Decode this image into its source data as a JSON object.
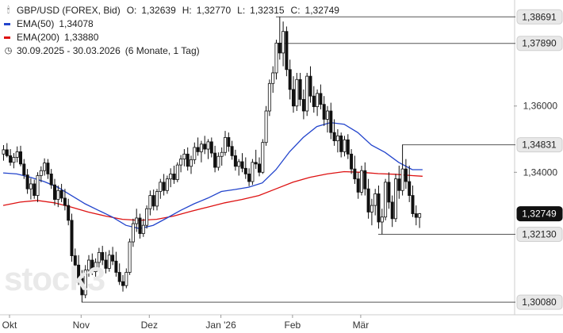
{
  "header": {
    "instrument": "GBP/USD (FOREX, Bid)",
    "ohlc": [
      {
        "label": "O:",
        "value": "1,32639"
      },
      {
        "label": "H:",
        "value": "1,32770"
      },
      {
        "label": "L:",
        "value": "1,32315"
      },
      {
        "label": "C:",
        "value": "1,32749"
      }
    ],
    "ema50": {
      "label": "EMA(50)",
      "value": "1,34078",
      "color": "#2244cc"
    },
    "ema200": {
      "label": "EMA(200)",
      "value": "1,33880",
      "color": "#dd1111"
    },
    "range": "30.09.2025 - 30.03.2026",
    "range_detail": "(6 Monate, 1 Tag)"
  },
  "watermark": "stock3",
  "chart_data": {
    "type": "candlestick",
    "x_ticks": [
      "Okt",
      "Nov",
      "Dez",
      "Jan '26",
      "Feb",
      "Mär"
    ],
    "y_ticks": [
      "1,36000",
      "1,34000"
    ],
    "y_range": [
      1.297,
      1.392
    ],
    "price_labels": [
      {
        "value": 1.38691,
        "text": "1,38691",
        "line": true,
        "start_index": 80,
        "fill": "#e8e8e8"
      },
      {
        "value": 1.3789,
        "text": "1,37890",
        "line": true,
        "start_index": 80,
        "fill": "#e8e8e8"
      },
      {
        "value": 1.34831,
        "text": "1,34831",
        "line": true,
        "start_index": 117,
        "fill": "#e8e8e8"
      },
      {
        "value": 1.32749,
        "text": "1,32749",
        "line": false,
        "fill": "#111111",
        "text_color": "#ffffff"
      },
      {
        "value": 1.3213,
        "text": "1,32130",
        "line": true,
        "start_index": 110,
        "fill": "#e8e8e8"
      },
      {
        "value": 1.3008,
        "text": "1,30080",
        "line": true,
        "start_index": 23,
        "fill": "#e8e8e8"
      }
    ],
    "ohlc": [
      [
        1.3455,
        1.3482,
        1.3435,
        1.3468
      ],
      [
        1.3468,
        1.3488,
        1.3445,
        1.345
      ],
      [
        1.345,
        1.347,
        1.342,
        1.343
      ],
      [
        1.343,
        1.3458,
        1.3412,
        1.3445
      ],
      [
        1.3445,
        1.3478,
        1.343,
        1.3462
      ],
      [
        1.3462,
        1.348,
        1.3418,
        1.3425
      ],
      [
        1.3425,
        1.344,
        1.338,
        1.3392
      ],
      [
        1.3392,
        1.341,
        1.3335,
        1.335
      ],
      [
        1.335,
        1.3382,
        1.3318,
        1.3365
      ],
      [
        1.3365,
        1.3378,
        1.332,
        1.333
      ],
      [
        1.333,
        1.34,
        1.331,
        1.339
      ],
      [
        1.339,
        1.3418,
        1.337,
        1.3405
      ],
      [
        1.3405,
        1.3442,
        1.339,
        1.3428
      ],
      [
        1.3428,
        1.344,
        1.338,
        1.3395
      ],
      [
        1.3395,
        1.341,
        1.335,
        1.3362
      ],
      [
        1.3362,
        1.338,
        1.33,
        1.3318
      ],
      [
        1.3318,
        1.336,
        1.3295,
        1.3345
      ],
      [
        1.3345,
        1.3365,
        1.331,
        1.3322
      ],
      [
        1.3322,
        1.335,
        1.3285,
        1.33
      ],
      [
        1.33,
        1.332,
        1.324,
        1.3255
      ],
      [
        1.3255,
        1.3275,
        1.313,
        1.3148
      ],
      [
        1.3148,
        1.317,
        1.31,
        1.312
      ],
      [
        1.312,
        1.315,
        1.306,
        1.308
      ],
      [
        1.308,
        1.3105,
        1.3008,
        1.303
      ],
      [
        1.303,
        1.312,
        1.302,
        1.3105
      ],
      [
        1.3105,
        1.315,
        1.3085,
        1.3135
      ],
      [
        1.3135,
        1.3155,
        1.309,
        1.31
      ],
      [
        1.31,
        1.314,
        1.3075,
        1.3128
      ],
      [
        1.3128,
        1.3172,
        1.311,
        1.3158
      ],
      [
        1.3158,
        1.3178,
        1.312,
        1.3135
      ],
      [
        1.3135,
        1.316,
        1.3095,
        1.311
      ],
      [
        1.311,
        1.3165,
        1.31,
        1.315
      ],
      [
        1.315,
        1.3175,
        1.312,
        1.3132
      ],
      [
        1.3132,
        1.316,
        1.3085,
        1.3098
      ],
      [
        1.3098,
        1.3125,
        1.306,
        1.307
      ],
      [
        1.307,
        1.309,
        1.304,
        1.3058
      ],
      [
        1.3058,
        1.311,
        1.305,
        1.3098
      ],
      [
        1.3098,
        1.32,
        1.309,
        1.319
      ],
      [
        1.319,
        1.326,
        1.3175,
        1.3245
      ],
      [
        1.3245,
        1.329,
        1.322,
        1.3262
      ],
      [
        1.3262,
        1.3275,
        1.32,
        1.3215
      ],
      [
        1.3215,
        1.326,
        1.3205,
        1.324
      ],
      [
        1.324,
        1.33,
        1.323,
        1.329
      ],
      [
        1.329,
        1.3345,
        1.327,
        1.333
      ],
      [
        1.333,
        1.3348,
        1.3285,
        1.3298
      ],
      [
        1.3298,
        1.335,
        1.3285,
        1.3342
      ],
      [
        1.3342,
        1.338,
        1.332,
        1.337
      ],
      [
        1.337,
        1.3395,
        1.333,
        1.3345
      ],
      [
        1.3345,
        1.339,
        1.3335,
        1.338
      ],
      [
        1.338,
        1.3412,
        1.3355,
        1.3395
      ],
      [
        1.3395,
        1.342,
        1.3365,
        1.3378
      ],
      [
        1.3378,
        1.343,
        1.337,
        1.3422
      ],
      [
        1.3422,
        1.3452,
        1.34,
        1.344
      ],
      [
        1.344,
        1.347,
        1.3418,
        1.3455
      ],
      [
        1.3455,
        1.3475,
        1.3405,
        1.3418
      ],
      [
        1.3418,
        1.345,
        1.3395,
        1.3438
      ],
      [
        1.3438,
        1.349,
        1.3425,
        1.3475
      ],
      [
        1.3475,
        1.3505,
        1.345,
        1.3462
      ],
      [
        1.3462,
        1.3495,
        1.343,
        1.3485
      ],
      [
        1.3485,
        1.351,
        1.3455,
        1.347
      ],
      [
        1.347,
        1.35,
        1.344,
        1.3492
      ],
      [
        1.3492,
        1.3505,
        1.3445,
        1.3458
      ],
      [
        1.3458,
        1.348,
        1.34,
        1.3415
      ],
      [
        1.3415,
        1.346,
        1.3405,
        1.3448
      ],
      [
        1.3448,
        1.3475,
        1.342,
        1.346
      ],
      [
        1.346,
        1.3525,
        1.345,
        1.3505
      ],
      [
        1.3505,
        1.352,
        1.3462,
        1.3478
      ],
      [
        1.3478,
        1.3495,
        1.3438,
        1.345
      ],
      [
        1.345,
        1.3468,
        1.3405,
        1.3418
      ],
      [
        1.3418,
        1.344,
        1.339,
        1.3432
      ],
      [
        1.3432,
        1.3458,
        1.34,
        1.3412
      ],
      [
        1.3412,
        1.3445,
        1.338,
        1.3395
      ],
      [
        1.3395,
        1.3412,
        1.3358,
        1.3372
      ],
      [
        1.3372,
        1.344,
        1.3362,
        1.343
      ],
      [
        1.343,
        1.3468,
        1.341,
        1.3425
      ],
      [
        1.3425,
        1.3445,
        1.3388,
        1.34
      ],
      [
        1.34,
        1.35,
        1.3395,
        1.349
      ],
      [
        1.349,
        1.36,
        1.348,
        1.3585
      ],
      [
        1.3585,
        1.368,
        1.357,
        1.3668
      ],
      [
        1.3668,
        1.372,
        1.364,
        1.37
      ],
      [
        1.37,
        1.38,
        1.368,
        1.379
      ],
      [
        1.379,
        1.3869,
        1.374,
        1.376
      ],
      [
        1.376,
        1.3855,
        1.372,
        1.3825
      ],
      [
        1.3825,
        1.384,
        1.369,
        1.371
      ],
      [
        1.371,
        1.374,
        1.362,
        1.365
      ],
      [
        1.365,
        1.369,
        1.358,
        1.36
      ],
      [
        1.36,
        1.37,
        1.3585,
        1.368
      ],
      [
        1.368,
        1.37,
        1.36,
        1.362
      ],
      [
        1.362,
        1.365,
        1.356,
        1.3585
      ],
      [
        1.3585,
        1.37,
        1.357,
        1.369
      ],
      [
        1.369,
        1.372,
        1.361,
        1.363
      ],
      [
        1.363,
        1.366,
        1.358,
        1.3598
      ],
      [
        1.3598,
        1.365,
        1.357,
        1.3638
      ],
      [
        1.3638,
        1.3665,
        1.359,
        1.3605
      ],
      [
        1.3605,
        1.363,
        1.354,
        1.356
      ],
      [
        1.356,
        1.36,
        1.352,
        1.3585
      ],
      [
        1.3585,
        1.361,
        1.35,
        1.352
      ],
      [
        1.352,
        1.356,
        1.348,
        1.3495
      ],
      [
        1.3495,
        1.353,
        1.346,
        1.351
      ],
      [
        1.351,
        1.352,
        1.3445,
        1.3462
      ],
      [
        1.3462,
        1.351,
        1.3448,
        1.3498
      ],
      [
        1.3498,
        1.3515,
        1.344,
        1.3455
      ],
      [
        1.3455,
        1.347,
        1.3395,
        1.341
      ],
      [
        1.341,
        1.345,
        1.3365,
        1.338
      ],
      [
        1.338,
        1.34,
        1.332,
        1.334
      ],
      [
        1.334,
        1.342,
        1.333,
        1.3405
      ],
      [
        1.3405,
        1.343,
        1.333,
        1.335
      ],
      [
        1.335,
        1.338,
        1.326,
        1.328
      ],
      [
        1.328,
        1.332,
        1.324,
        1.33
      ],
      [
        1.33,
        1.335,
        1.327,
        1.3335
      ],
      [
        1.3335,
        1.336,
        1.323,
        1.325
      ],
      [
        1.325,
        1.329,
        1.3213,
        1.3265
      ],
      [
        1.3265,
        1.338,
        1.3255,
        1.337
      ],
      [
        1.337,
        1.34,
        1.329,
        1.331
      ],
      [
        1.331,
        1.333,
        1.3235,
        1.326
      ],
      [
        1.326,
        1.3395,
        1.325,
        1.338
      ],
      [
        1.338,
        1.342,
        1.332,
        1.3345
      ],
      [
        1.3345,
        1.3483,
        1.333,
        1.341
      ],
      [
        1.341,
        1.344,
        1.335,
        1.3372
      ],
      [
        1.3372,
        1.342,
        1.331,
        1.333
      ],
      [
        1.333,
        1.336,
        1.3265,
        1.3275
      ],
      [
        1.3275,
        1.33,
        1.324,
        1.3264
      ],
      [
        1.3264,
        1.3277,
        1.3232,
        1.3275
      ]
    ],
    "ema50": [
      [
        0,
        1.3398
      ],
      [
        4,
        1.3395
      ],
      [
        8,
        1.3385
      ],
      [
        12,
        1.3372
      ],
      [
        16,
        1.3355
      ],
      [
        20,
        1.333
      ],
      [
        24,
        1.3305
      ],
      [
        28,
        1.3285
      ],
      [
        32,
        1.3265
      ],
      [
        36,
        1.324
      ],
      [
        40,
        1.323
      ],
      [
        44,
        1.324
      ],
      [
        48,
        1.3262
      ],
      [
        52,
        1.3285
      ],
      [
        56,
        1.3305
      ],
      [
        60,
        1.3322
      ],
      [
        64,
        1.3342
      ],
      [
        68,
        1.3348
      ],
      [
        72,
        1.3355
      ],
      [
        76,
        1.3368
      ],
      [
        80,
        1.3408
      ],
      [
        84,
        1.3462
      ],
      [
        88,
        1.3505
      ],
      [
        92,
        1.3538
      ],
      [
        96,
        1.355
      ],
      [
        100,
        1.3545
      ],
      [
        104,
        1.352
      ],
      [
        108,
        1.3482
      ],
      [
        112,
        1.346
      ],
      [
        116,
        1.343
      ],
      [
        120,
        1.3408
      ],
      [
        123,
        1.3408
      ]
    ],
    "ema200": [
      [
        0,
        1.33
      ],
      [
        5,
        1.331
      ],
      [
        10,
        1.3315
      ],
      [
        15,
        1.3308
      ],
      [
        20,
        1.3295
      ],
      [
        25,
        1.328
      ],
      [
        30,
        1.3268
      ],
      [
        35,
        1.3258
      ],
      [
        40,
        1.3255
      ],
      [
        45,
        1.3258
      ],
      [
        50,
        1.3268
      ],
      [
        55,
        1.3282
      ],
      [
        60,
        1.3295
      ],
      [
        65,
        1.3308
      ],
      [
        70,
        1.3318
      ],
      [
        75,
        1.333
      ],
      [
        80,
        1.335
      ],
      [
        85,
        1.337
      ],
      [
        90,
        1.3385
      ],
      [
        95,
        1.3395
      ],
      [
        100,
        1.3402
      ],
      [
        105,
        1.34
      ],
      [
        110,
        1.3396
      ],
      [
        115,
        1.3394
      ],
      [
        120,
        1.339
      ],
      [
        123,
        1.3388
      ]
    ]
  }
}
